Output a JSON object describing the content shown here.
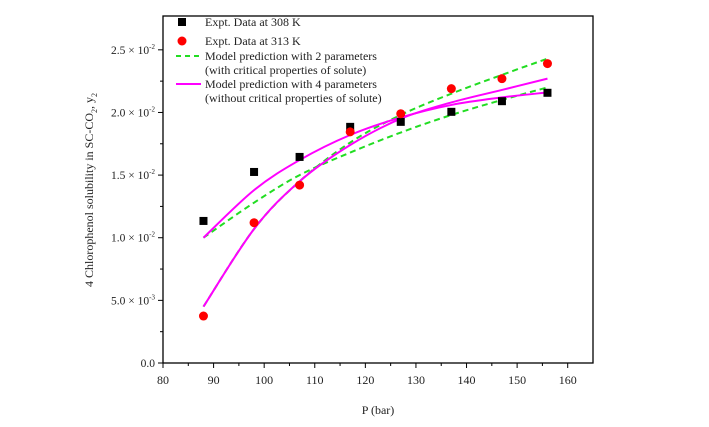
{
  "chart_data": {
    "type": "line",
    "xlabel": "P (bar)",
    "ylabel": "4 Chlorophenol solubility in SC-CO",
    "ylabel_sub1": "2",
    "ylabel_tail": ", y",
    "ylabel_sub2": "2",
    "xlim": [
      80,
      165
    ],
    "ylim": [
      0,
      0.0277
    ],
    "x_ticks": [
      80,
      90,
      100,
      110,
      120,
      130,
      140,
      150,
      160
    ],
    "x_tick_labels": [
      "80",
      "90",
      "100",
      "110",
      "120",
      "130",
      "140",
      "150",
      "160"
    ],
    "y_ticks": [
      0,
      0.005,
      0.01,
      0.015,
      0.02,
      0.025
    ],
    "y_tick_labels": [
      {
        "mantissa": "0.0",
        "exp": ""
      },
      {
        "mantissa": "5.0 × 10",
        "exp": "-3"
      },
      {
        "mantissa": "1.0 × 10",
        "exp": "-2"
      },
      {
        "mantissa": "1.5 × 10",
        "exp": "-2"
      },
      {
        "mantissa": "2.0 × 10",
        "exp": "-2"
      },
      {
        "mantissa": "2.5 × 10",
        "exp": "-2"
      }
    ],
    "grid": false,
    "legend_position": "top-left",
    "legend": [
      {
        "label": "Expt. Data at 308 K",
        "marker": "square",
        "color": "#000000"
      },
      {
        "label": "Expt. Data at 313 K",
        "marker": "circle",
        "color": "#ff0000"
      },
      {
        "label": "Model prediction with 2 parameters",
        "label2": "(with critical properties of solute)",
        "line": "dashed",
        "color": "#22dd22"
      },
      {
        "label": "Model prediction with 4 parameters",
        "label2": "(without critical properties of solute)",
        "line": "solid",
        "color": "#ff00ff"
      }
    ],
    "series": [
      {
        "name": "Expt. Data at 308 K",
        "kind": "scatter",
        "marker": "square",
        "color": "#000000",
        "x": [
          88,
          98,
          107,
          117,
          127,
          137,
          147,
          156
        ],
        "y": [
          0.01134,
          0.01525,
          0.01645,
          0.01885,
          0.01925,
          0.02005,
          0.0209,
          0.02157
        ]
      },
      {
        "name": "Expt. Data at 313 K",
        "kind": "scatter",
        "marker": "circle",
        "color": "#ff0000",
        "x": [
          88,
          98,
          107,
          117,
          127,
          137,
          147,
          156
        ],
        "y": [
          0.00375,
          0.0112,
          0.0142,
          0.01845,
          0.0199,
          0.0219,
          0.0227,
          0.0239
        ]
      },
      {
        "kind": "line",
        "style": "dashed",
        "color": "#22dd22",
        "x": [
          88,
          98,
          107,
          117,
          127,
          137,
          147,
          156
        ],
        "y": [
          0.01,
          0.0128,
          0.015,
          0.0168,
          0.0184,
          0.0198,
          0.021,
          0.022
        ]
      },
      {
        "kind": "line",
        "style": "dashed",
        "color": "#22dd22",
        "x": [
          88,
          98,
          107,
          117,
          127,
          137,
          147,
          156
        ],
        "y": [
          0.0045,
          0.0107,
          0.0145,
          0.0176,
          0.0198,
          0.0215,
          0.023,
          0.0243
        ]
      },
      {
        "kind": "line",
        "style": "solid",
        "color": "#ff00ff",
        "x": [
          88,
          98,
          107,
          117,
          127,
          137,
          147,
          156
        ],
        "y": [
          0.01,
          0.0138,
          0.0162,
          0.0182,
          0.0196,
          0.0206,
          0.0212,
          0.0216
        ]
      },
      {
        "kind": "line",
        "style": "solid",
        "color": "#ff00ff",
        "x": [
          88,
          98,
          107,
          117,
          127,
          137,
          147,
          156
        ],
        "y": [
          0.0045,
          0.0107,
          0.0145,
          0.0174,
          0.0195,
          0.0208,
          0.0218,
          0.0227
        ]
      }
    ]
  }
}
